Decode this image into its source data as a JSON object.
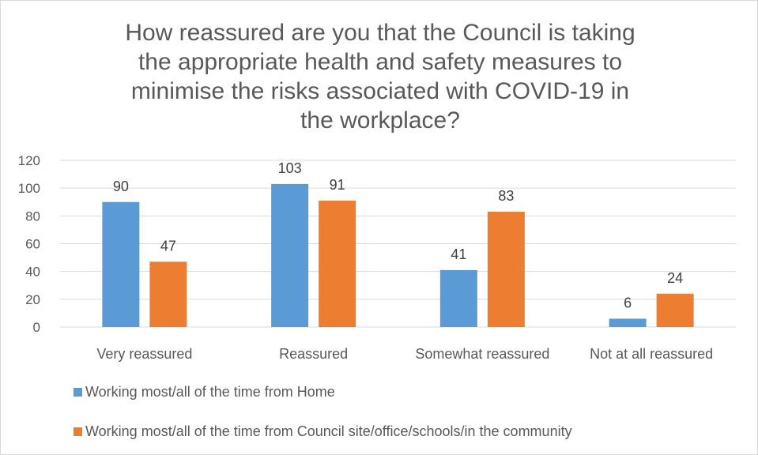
{
  "chart_data": {
    "type": "bar",
    "title": "How reassured are you that the Council is taking the appropriate health and safety measures to minimise the risks associated with COVID-19 in the workplace?",
    "categories": [
      "Very reassured",
      "Reassured",
      "Somewhat reassured",
      "Not at all reassured"
    ],
    "series": [
      {
        "name": "Working most/all of the time from Home",
        "values": [
          90,
          103,
          41,
          6
        ],
        "color": "#5b9bd5"
      },
      {
        "name": "Working most/all of the time from Council site/office/schools/in the community",
        "values": [
          47,
          91,
          83,
          24
        ],
        "color": "#ed7d31"
      }
    ],
    "yticks": [
      0,
      20,
      40,
      60,
      80,
      100,
      120
    ],
    "ylim": [
      0,
      120
    ],
    "grid": true,
    "legend_position": "bottom",
    "data_labels": true
  }
}
